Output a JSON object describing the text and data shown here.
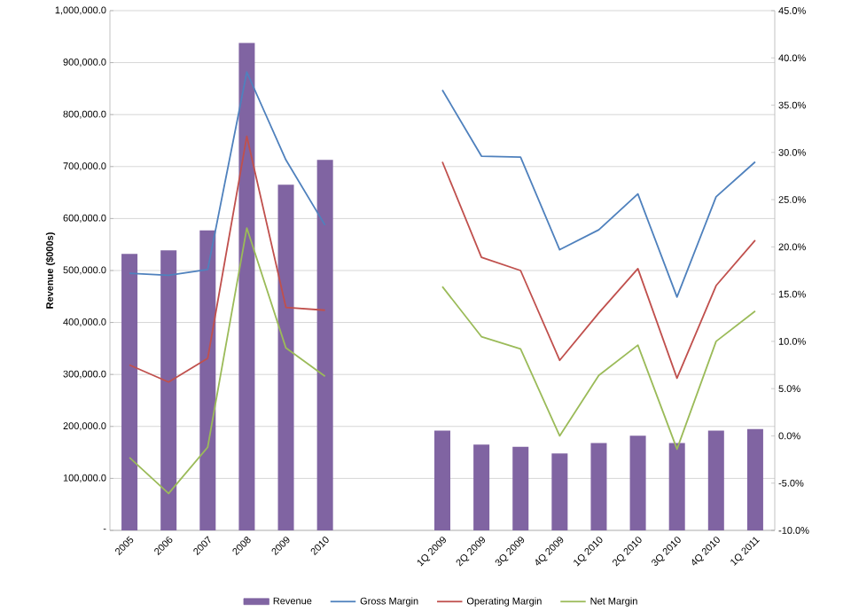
{
  "chart_data": {
    "type": "bar",
    "ylabel": "Revenue ($000s)",
    "categories": [
      "2005",
      "2006",
      "2007",
      "2008",
      "2009",
      "2010",
      null,
      null,
      "1Q 2009",
      "2Q 2009",
      "3Q 2009",
      "4Q 2009",
      "1Q 2010",
      "2Q 2010",
      "3Q 2010",
      "4Q 2010",
      "1Q 2011"
    ],
    "series": [
      {
        "name": "Revenue",
        "color": "#8064a2",
        "values": [
          532000,
          539000,
          577000,
          938000,
          665000,
          713000,
          null,
          null,
          192000,
          165000,
          161000,
          148000,
          168000,
          182000,
          168000,
          192000,
          195000
        ]
      },
      {
        "name": "Gross Margin",
        "type": "line",
        "axis": "y2",
        "color": "#4f81bd",
        "values": [
          17.2,
          17.0,
          17.6,
          38.5,
          29.2,
          22.3,
          null,
          null,
          36.6,
          29.6,
          29.5,
          19.7,
          21.8,
          25.6,
          14.7,
          25.3,
          29.0
        ]
      },
      {
        "name": "Operating Margin",
        "type": "line",
        "axis": "y2",
        "color": "#c0504d",
        "values": [
          7.5,
          5.7,
          8.2,
          31.7,
          13.6,
          13.3,
          null,
          null,
          29.0,
          18.9,
          17.5,
          8.0,
          13.0,
          17.7,
          6.1,
          15.9,
          20.7
        ]
      },
      {
        "name": "Net Margin",
        "type": "line",
        "axis": "y2",
        "color": "#9bbb59",
        "values": [
          -2.3,
          -6.1,
          -1.2,
          22.0,
          9.3,
          6.3,
          null,
          null,
          15.8,
          10.5,
          9.2,
          0.0,
          6.4,
          9.6,
          -1.4,
          10.0,
          13.2
        ]
      }
    ],
    "ylim": [
      0,
      1000000
    ],
    "yticks": [
      {
        "value": 0,
        "label": "-"
      },
      {
        "value": 100000,
        "label": "100,000.0"
      },
      {
        "value": 200000,
        "label": "200,000.0"
      },
      {
        "value": 300000,
        "label": "300,000.0"
      },
      {
        "value": 400000,
        "label": "400,000.0"
      },
      {
        "value": 500000,
        "label": "500,000.0"
      },
      {
        "value": 600000,
        "label": "600,000.0"
      },
      {
        "value": 700000,
        "label": "700,000.0"
      },
      {
        "value": 800000,
        "label": "800,000.0"
      },
      {
        "value": 900000,
        "label": "900,000.0"
      },
      {
        "value": 1000000,
        "label": "1,000,000.0"
      }
    ],
    "y2lim": [
      -10,
      45
    ],
    "y2ticks": [
      {
        "value": -10,
        "label": "-10.0%"
      },
      {
        "value": -5,
        "label": "-5.0%"
      },
      {
        "value": 0,
        "label": "0.0%"
      },
      {
        "value": 5,
        "label": "5.0%"
      },
      {
        "value": 10,
        "label": "10.0%"
      },
      {
        "value": 15,
        "label": "15.0%"
      },
      {
        "value": 20,
        "label": "20.0%"
      },
      {
        "value": 25,
        "label": "25.0%"
      },
      {
        "value": 30,
        "label": "30.0%"
      },
      {
        "value": 35,
        "label": "35.0%"
      },
      {
        "value": 40,
        "label": "40.0%"
      },
      {
        "value": 45,
        "label": "45.0%"
      }
    ],
    "grid": "y",
    "legend": "bottom"
  }
}
